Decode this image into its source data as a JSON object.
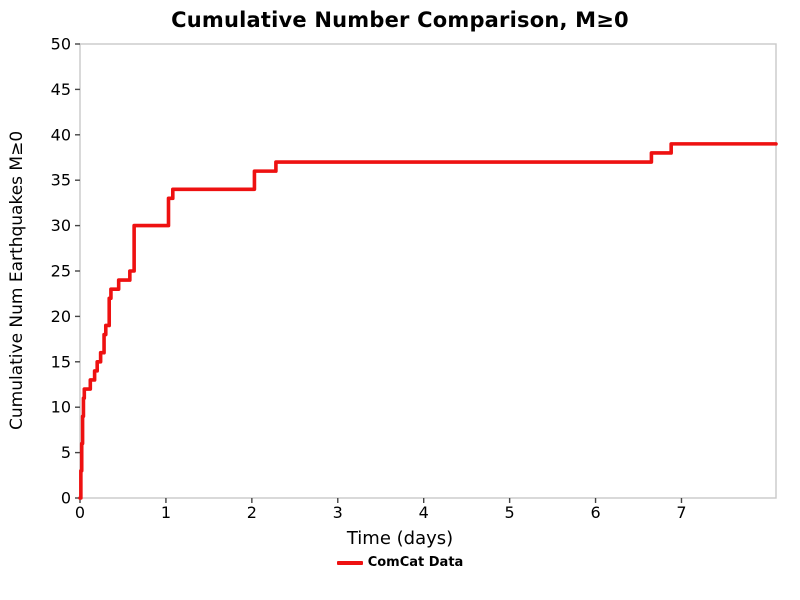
{
  "chart_data": {
    "type": "line",
    "title": "Cumulative Number Comparison, M≥0",
    "xlabel": "Time (days)",
    "ylabel": "Cumulative Num Earthquakes M≥0",
    "xlim": [
      0,
      8.1
    ],
    "ylim": [
      0,
      50
    ],
    "xticks": [
      0,
      1,
      2,
      3,
      4,
      5,
      6,
      7
    ],
    "yticks": [
      0,
      5,
      10,
      15,
      20,
      25,
      30,
      35,
      40,
      45,
      50
    ],
    "grid": false,
    "legend_position": "bottom-center",
    "series": [
      {
        "name": "ComCat Data",
        "color": "#ee1111",
        "style": "step-post",
        "x": [
          0,
          0.01,
          0.02,
          0.03,
          0.04,
          0.05,
          0.12,
          0.17,
          0.2,
          0.24,
          0.28,
          0.3,
          0.34,
          0.36,
          0.45,
          0.58,
          0.63,
          1.03,
          1.08,
          2.03,
          2.28,
          6.65,
          6.88,
          8.1
        ],
        "y": [
          0,
          3,
          6,
          9,
          11,
          12,
          13,
          14,
          15,
          16,
          18,
          19,
          22,
          23,
          24,
          25,
          30,
          33,
          34,
          36,
          37,
          38,
          39,
          39
        ]
      }
    ]
  },
  "style_colors": {
    "axis_box": "#c9c9c9",
    "tick": "#444444",
    "tick_label": "#000000"
  }
}
